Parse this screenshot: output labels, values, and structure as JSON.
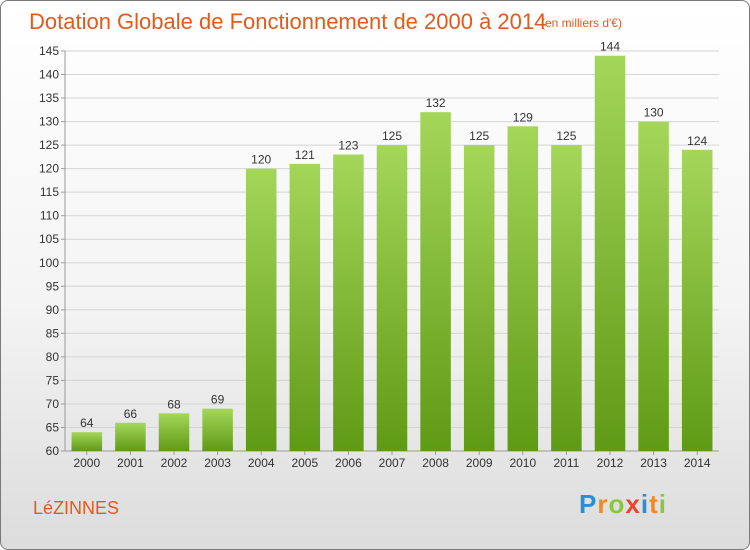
{
  "header": {
    "title": "Dotation Globale de Fonctionnement de 2000 à 2014",
    "unit": "(en milliers d'€)"
  },
  "footer": {
    "commune": "LéZINNES",
    "logo_letters": [
      {
        "ch": "P",
        "color": "#2a8fd6"
      },
      {
        "ch": "r",
        "color": "#f08a24"
      },
      {
        "ch": "o",
        "color": "#8cc63f"
      },
      {
        "ch": "x",
        "color": "#e8462b"
      },
      {
        "ch": "i",
        "color": "#2a8fd6"
      },
      {
        "ch": "t",
        "color": "#f08a24"
      },
      {
        "ch": "i",
        "color": "#8cc63f"
      }
    ]
  },
  "colors": {
    "bar_top": "#a4d65a",
    "bar_bottom": "#5f9a15",
    "grid": "#d4d4d4",
    "axis": "#9a9a9a"
  },
  "chart_data": {
    "type": "bar",
    "categories": [
      "2000",
      "2001",
      "2002",
      "2003",
      "2004",
      "2005",
      "2006",
      "2007",
      "2008",
      "2009",
      "2010",
      "2011",
      "2012",
      "2013",
      "2014"
    ],
    "values": [
      64,
      66,
      68,
      69,
      120,
      121,
      123,
      125,
      132,
      125,
      129,
      125,
      144,
      130,
      124
    ],
    "ylim": [
      60,
      145
    ],
    "yticks": [
      60,
      65,
      70,
      75,
      80,
      85,
      90,
      95,
      100,
      105,
      110,
      115,
      120,
      125,
      130,
      135,
      140,
      145
    ],
    "grid": true,
    "data_labels": true
  }
}
